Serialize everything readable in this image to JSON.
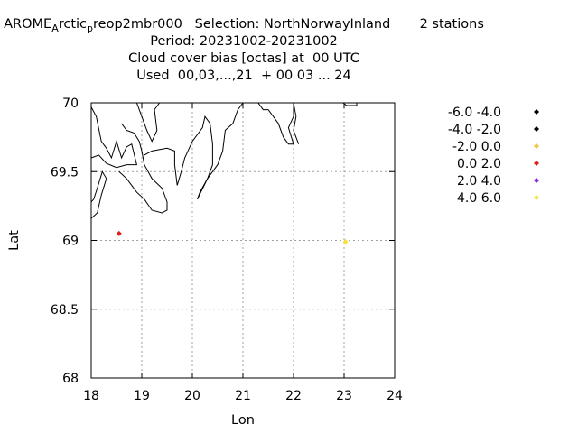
{
  "header": {
    "line1_parts": {
      "prefix": "AROME",
      "sub1": "A",
      "mid": "rctic",
      "sub2": "p",
      "rest": "reop2mbr000   Selection: NorthNorwayInland       2 stations"
    },
    "line2": "Period: 20231002-20231002",
    "line3": "Cloud cover bias [octas] at  00 UTC",
    "line4": "Used  00,03,...,21  + 00 03 ... 24"
  },
  "chart_data": {
    "type": "scatter",
    "title": "Cloud cover bias [octas] at  00 UTC",
    "xlabel": "Lon",
    "ylabel": "Lat",
    "xlim": [
      18,
      24
    ],
    "ylim": [
      68,
      70
    ],
    "xticks": [
      "18",
      "19",
      "20",
      "21",
      "22",
      "23",
      "24"
    ],
    "yticks": [
      "68",
      "68.5",
      "69",
      "69.5",
      "70"
    ],
    "grid": true,
    "legend_position": "right",
    "legend": [
      {
        "label": "-6.0 -4.0",
        "color": "#000000"
      },
      {
        "label": "-4.0 -2.0",
        "color": "#000000"
      },
      {
        "label": "-2.0 0.0",
        "color": "#f2c640"
      },
      {
        "label": "0.0 2.0",
        "color": "#e0201b"
      },
      {
        "label": "2.0 4.0",
        "color": "#8a2be2"
      },
      {
        "label": "4.0 6.0",
        "color": "#f5e340"
      }
    ],
    "points": [
      {
        "lon": 18.55,
        "lat": 69.05,
        "color": "#e0201b"
      },
      {
        "lon": 23.03,
        "lat": 68.99,
        "color": "#f5e340"
      }
    ],
    "coastline": [
      [
        [
          18.0,
          69.16
        ],
        [
          18.12,
          69.2
        ],
        [
          18.2,
          69.33
        ],
        [
          18.3,
          69.45
        ],
        [
          18.22,
          69.5
        ],
        [
          18.12,
          69.38
        ],
        [
          18.05,
          69.3
        ],
        [
          18.0,
          69.28
        ]
      ],
      [
        [
          18.0,
          69.97
        ],
        [
          18.1,
          69.9
        ],
        [
          18.2,
          69.72
        ],
        [
          18.3,
          69.67
        ],
        [
          18.4,
          69.6
        ],
        [
          18.5,
          69.72
        ],
        [
          18.6,
          69.6
        ],
        [
          18.7,
          69.68
        ],
        [
          18.8,
          69.7
        ],
        [
          18.9,
          69.55
        ],
        [
          18.7,
          69.55
        ],
        [
          18.5,
          69.53
        ],
        [
          18.3,
          69.56
        ],
        [
          18.15,
          69.62
        ],
        [
          18.0,
          69.6
        ]
      ],
      [
        [
          18.55,
          69.5
        ],
        [
          18.7,
          69.45
        ],
        [
          18.9,
          69.35
        ],
        [
          19.05,
          69.3
        ],
        [
          19.2,
          69.22
        ],
        [
          19.4,
          69.2
        ],
        [
          19.5,
          69.22
        ],
        [
          19.5,
          69.28
        ],
        [
          19.4,
          69.38
        ],
        [
          19.2,
          69.45
        ],
        [
          19.05,
          69.55
        ],
        [
          19.0,
          69.65
        ],
        [
          18.95,
          69.72
        ],
        [
          18.85,
          69.78
        ],
        [
          18.7,
          69.8
        ],
        [
          18.6,
          69.85
        ]
      ],
      [
        [
          18.9,
          70.0
        ],
        [
          19.0,
          69.9
        ],
        [
          19.1,
          69.8
        ],
        [
          19.2,
          69.72
        ],
        [
          19.3,
          69.8
        ],
        [
          19.25,
          69.95
        ],
        [
          19.35,
          70.0
        ]
      ],
      [
        [
          19.05,
          69.62
        ],
        [
          19.2,
          69.65
        ],
        [
          19.5,
          69.67
        ],
        [
          19.65,
          69.65
        ],
        [
          19.65,
          69.55
        ],
        [
          19.7,
          69.4
        ],
        [
          19.78,
          69.5
        ],
        [
          19.85,
          69.6
        ],
        [
          20.0,
          69.72
        ],
        [
          20.2,
          69.82
        ],
        [
          20.25,
          69.9
        ],
        [
          20.35,
          69.85
        ],
        [
          20.4,
          69.7
        ],
        [
          20.4,
          69.55
        ],
        [
          20.3,
          69.45
        ],
        [
          20.15,
          69.35
        ],
        [
          20.1,
          69.3
        ]
      ],
      [
        [
          20.1,
          69.3
        ],
        [
          20.3,
          69.45
        ],
        [
          20.5,
          69.55
        ],
        [
          20.6,
          69.65
        ],
        [
          20.65,
          69.8
        ],
        [
          20.8,
          69.85
        ],
        [
          20.9,
          69.95
        ],
        [
          21.0,
          70.0
        ]
      ],
      [
        [
          21.3,
          70.0
        ],
        [
          21.4,
          69.95
        ],
        [
          21.5,
          69.95
        ],
        [
          21.6,
          69.9
        ],
        [
          21.7,
          69.85
        ],
        [
          21.8,
          69.75
        ],
        [
          21.9,
          69.7
        ],
        [
          22.0,
          69.7
        ],
        [
          21.9,
          69.82
        ],
        [
          22.0,
          69.9
        ],
        [
          22.0,
          70.0
        ]
      ],
      [
        [
          22.1,
          69.7
        ],
        [
          22.0,
          69.8
        ],
        [
          22.05,
          69.9
        ],
        [
          22.0,
          70.0
        ]
      ],
      [
        [
          22.98,
          70.0
        ],
        [
          23.05,
          69.98
        ],
        [
          23.25,
          69.98
        ],
        [
          23.25,
          70.0
        ]
      ]
    ]
  }
}
